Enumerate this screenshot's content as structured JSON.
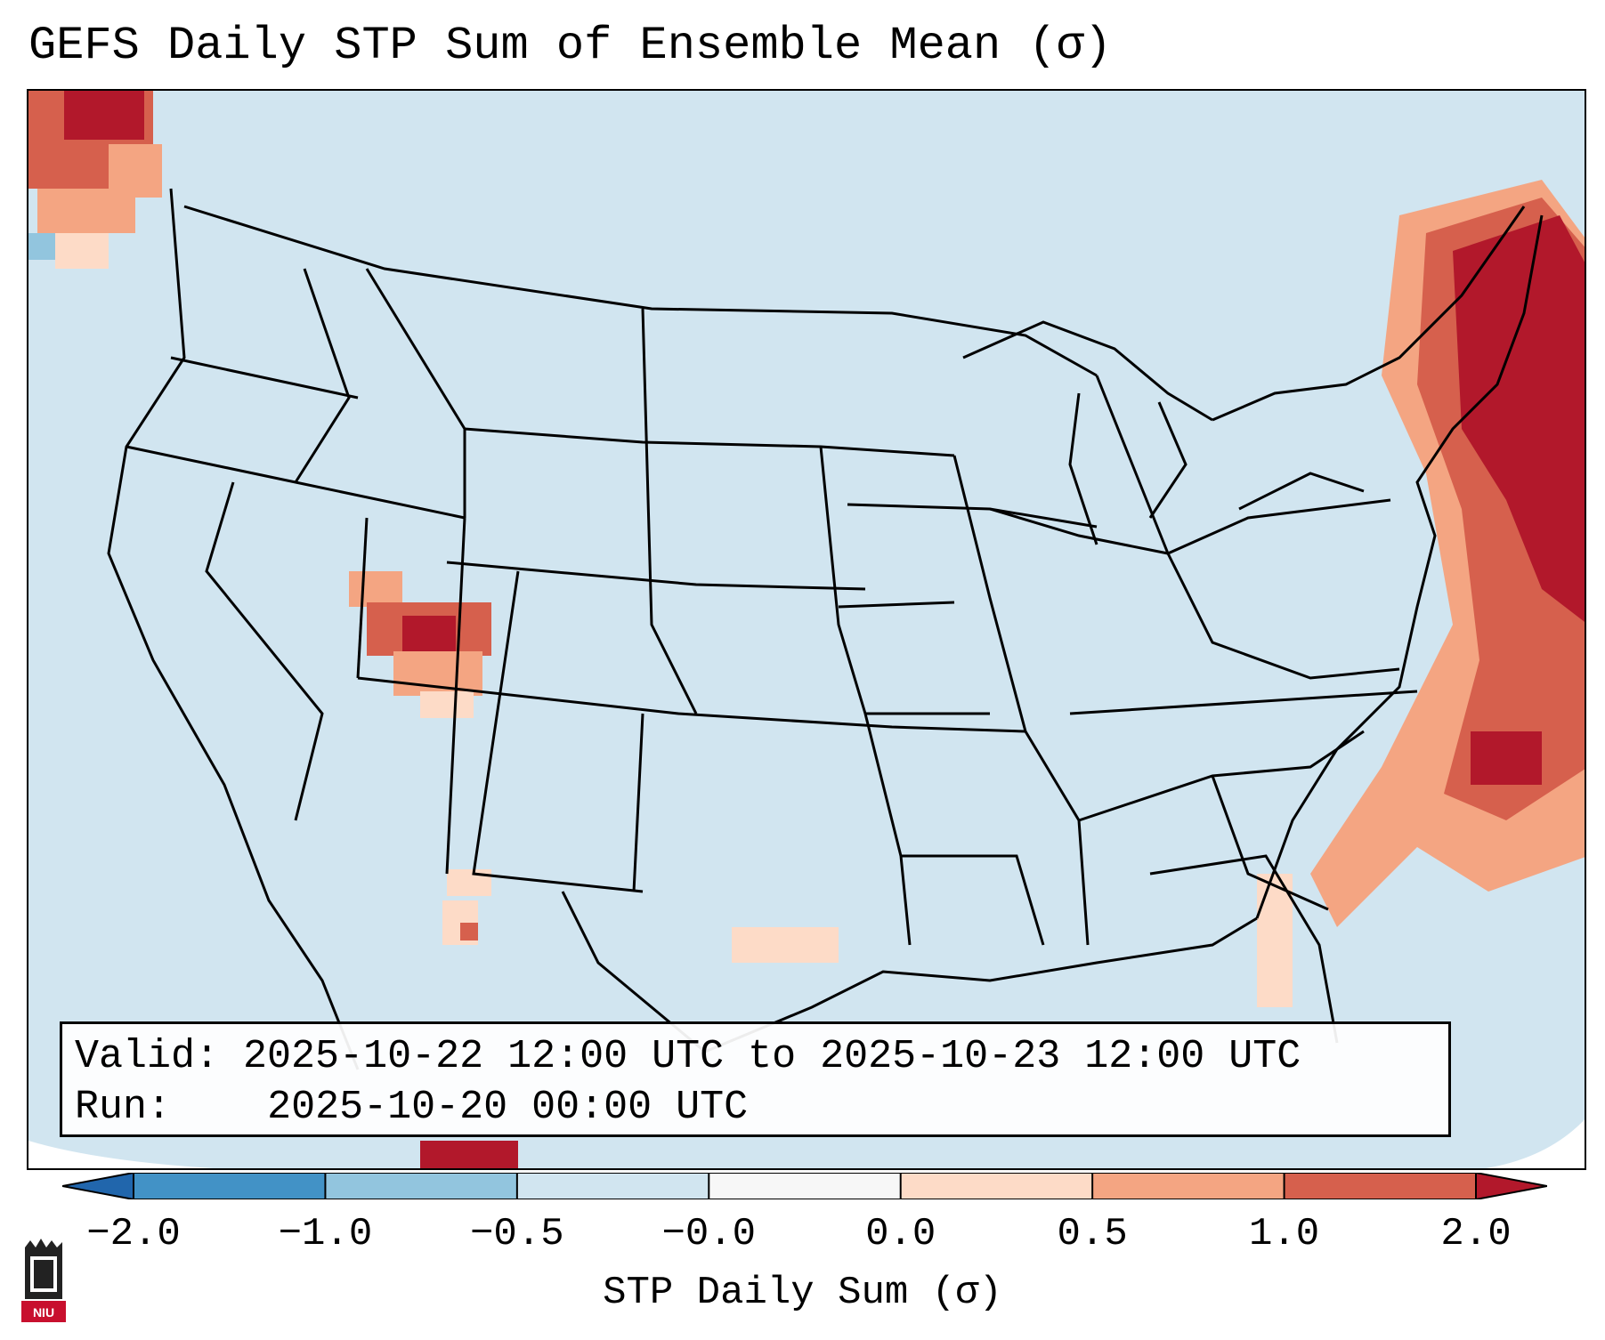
{
  "title": "GEFS Daily STP Sum of Ensemble Mean (σ)",
  "info": {
    "valid_label": "Valid:",
    "valid_value": "2025-10-22 12:00 UTC to 2025-10-23 12:00 UTC",
    "run_label": "Run:",
    "run_value": "2025-10-20 00:00 UTC"
  },
  "colorbar": {
    "label": "STP Daily Sum (σ)",
    "ticks": [
      "−2.0",
      "−1.0",
      "−0.5",
      "−0.0",
      "0.0",
      "0.5",
      "1.0",
      "2.0"
    ],
    "colors": [
      "#4292c6",
      "#92c5de",
      "#d1e5f0",
      "#f7f7f7",
      "#fddbc7",
      "#f4a582",
      "#d6604d"
    ],
    "under_color": "#2166ac",
    "over_color": "#b2182b"
  },
  "map": {
    "background_color": "#d1e5f0",
    "border_color": "#000000",
    "regions": [
      {
        "area": "Pacific Northwest coast",
        "category": "positive"
      },
      {
        "area": "Four Corners",
        "category": "positive"
      },
      {
        "area": "Northeast US / Atlantic",
        "category": "strong positive"
      },
      {
        "area": "Gulf Coast",
        "category": "weak positive"
      }
    ]
  },
  "logo": {
    "text": "NIU"
  }
}
